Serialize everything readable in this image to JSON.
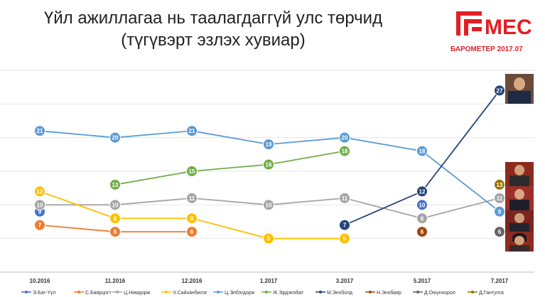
{
  "title_line1": "Үйл ажиллагаа нь таалагдаггүй улс төрчид",
  "title_line2": "(түгүвэрт эзлэх хувиар)",
  "logo": {
    "text": "МЕС",
    "subtitle": "БАРОМЕТЕР 2017.07",
    "color": "#e31e24"
  },
  "chart_data": {
    "type": "line",
    "categories": [
      "10.2016",
      "11.2016",
      "12.2016",
      "1.2017",
      "3.2017",
      "5.2017",
      "7.2017"
    ],
    "ylim": [
      0,
      30
    ],
    "grid": true,
    "legend_position": "bottom",
    "series": [
      {
        "name": "Э.Бат-Үүл",
        "color": "#4472c4",
        "values": [
          9,
          null,
          null,
          null,
          null,
          null,
          null
        ]
      },
      {
        "name": "С.Баярцогт",
        "color": "#ed7d31",
        "values": [
          7,
          6,
          6,
          null,
          null,
          null,
          null
        ]
      },
      {
        "name": "Ц.Нямдорж",
        "color": "#a5a5a5",
        "values": [
          10,
          10,
          11,
          10,
          11,
          8,
          11
        ]
      },
      {
        "name": "Ч.Сайханбилэг",
        "color": "#ffc000",
        "values": [
          12,
          8,
          8,
          5,
          5,
          null,
          null
        ]
      },
      {
        "name": "Ц.Элбэгдорж",
        "color": "#5b9bd5",
        "values": [
          21,
          20,
          21,
          19,
          20,
          18,
          9
        ]
      },
      {
        "name": "Ж.Эрдэнэбат",
        "color": "#70ad47",
        "values": [
          null,
          13,
          15,
          16,
          18,
          null,
          null
        ]
      },
      {
        "name": "М.Энхболд",
        "color": "#264478",
        "values": [
          null,
          null,
          null,
          null,
          7,
          12,
          27
        ]
      },
      {
        "name": "Н.Энхбаяр",
        "color": "#9e480e",
        "values": [
          null,
          null,
          null,
          null,
          null,
          6,
          null
        ]
      },
      {
        "name": "Д.Оюунхорол",
        "color": "#636363",
        "values": [
          null,
          null,
          null,
          null,
          null,
          null,
          6
        ]
      },
      {
        "name": "Д.Гантулга",
        "color": "#997300",
        "values": [
          null,
          null,
          null,
          null,
          null,
          null,
          13
        ]
      }
    ],
    "extra_points": [
      {
        "series": "Э.Бат-Үүл",
        "category": "5.2017",
        "value": 10,
        "color": "#4472c4"
      }
    ]
  }
}
